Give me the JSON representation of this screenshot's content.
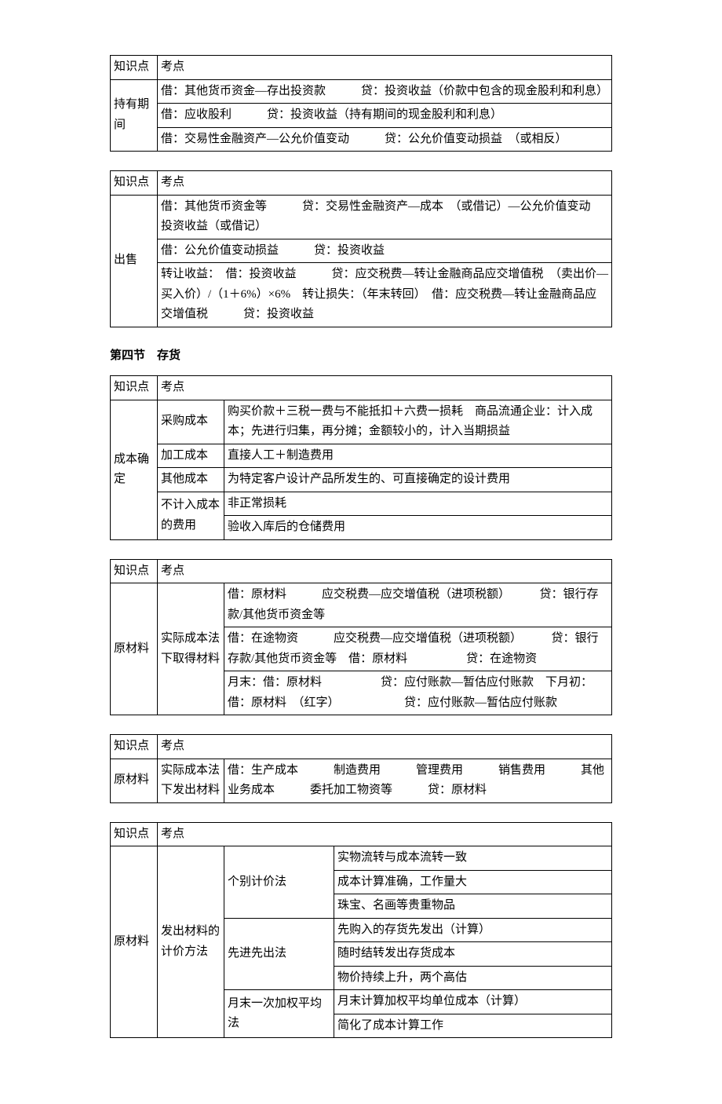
{
  "headers": {
    "col0": "知识点",
    "col1": "考点"
  },
  "section_heading": "第四节　存货",
  "table1": {
    "category": "持有期间",
    "rows": [
      "借：其他货币资金—存出投资款　　　贷：投资收益（价款中包含的现金股利和利息）",
      "借：应收股利　　　贷：投资收益（持有期间的现金股利和利息）",
      "借：交易性金融资产—公允价值变动　　　贷：公允价值变动损益　（或相反）"
    ]
  },
  "table2": {
    "category": "出售",
    "rows": [
      "借：其他货币资金等　　　贷：交易性金融资产—成本　（或借记）—公允价值变动　　　　投资收益（或借记）",
      "借：公允价值变动损益　　　贷：投资收益",
      "转让收益：　借：投资收益　　　贷：应交税费—转让金融商品应交增值税　（卖出价—买入价）/（1＋6%）×6%　转让损失：（年末转回）　借：应交税费—转让金融商品应交增值税　　　贷：投资收益"
    ]
  },
  "table3": {
    "category": "成本确定",
    "subrows": [
      {
        "label": "采购成本",
        "content": "购买价款＋三税一费与不能抵扣＋六费一损耗　商品流通企业：计入成本；先进行归集，再分摊；金额较小的，计入当期损益"
      },
      {
        "label": "加工成本",
        "content": "直接人工＋制造费用"
      },
      {
        "label": "其他成本",
        "content": "为特定客户设计产品所发生的、可直接确定的设计费用"
      },
      {
        "label": "不计入成本的费用",
        "content_rows": [
          "非正常损耗",
          "验收入库后的仓储费用"
        ]
      }
    ]
  },
  "table4": {
    "category": "原材料",
    "sub_label": "实际成本法下取得材料",
    "rows": [
      "借：原材料　　　应交税费—应交增值税（进项税额）　　　贷：银行存款/其他货币资金等",
      "借：在途物资　　　应交税费—应交增值税（进项税额）　　　贷：银行存款/其他货币资金等　借：原材料　　　　　贷：在途物资",
      "月末：借：原材料　　　　　贷：应付账款—暂估应付账款　下月初：借：原材料　（红字）　　　　　　贷：应付账款—暂估应付账款"
    ]
  },
  "table5": {
    "category": "原材料",
    "sub_label": "实际成本法下发出材料",
    "content": "借：生产成本　　　制造费用　　　管理费用　　　销售费用　　　其他业务成本　　　委托加工物资等　　　贷：原材料"
  },
  "table6": {
    "category": "原材料",
    "sub_label": "发出材料的计价方法",
    "methods": [
      {
        "method": "个别计价法",
        "details": [
          "实物流转与成本流转一致",
          "成本计算准确，工作量大",
          "珠宝、名画等贵重物品"
        ]
      },
      {
        "method": "先进先出法",
        "details": [
          "先购入的存货先发出（计算）",
          "随时结转发出存货成本",
          "物价持续上升，两个高估"
        ]
      },
      {
        "method": "月末一次加权平均法",
        "details": [
          "月末计算加权平均单位成本（计算）",
          "简化了成本计算工作"
        ]
      }
    ]
  }
}
